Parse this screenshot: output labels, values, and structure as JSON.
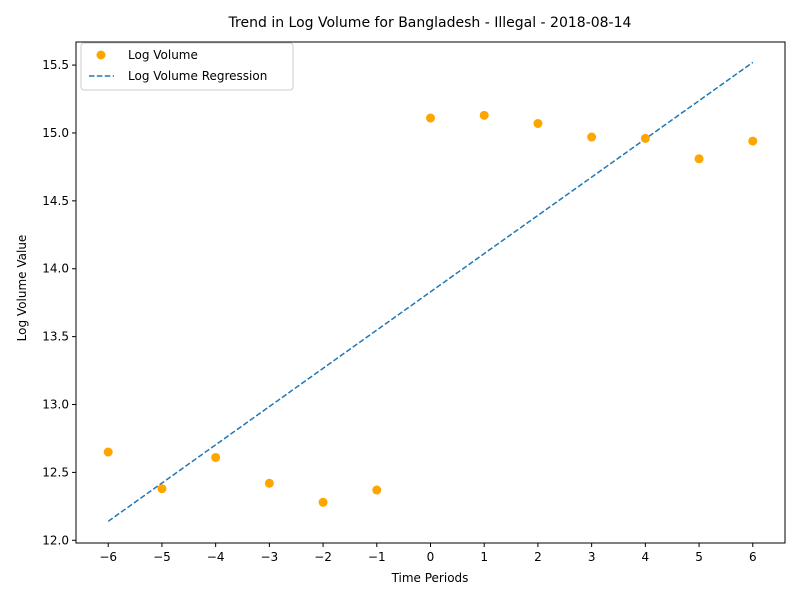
{
  "chart_data": {
    "type": "scatter",
    "title": "Trend in Log Volume for Bangladesh - Illegal - 2018-08-14",
    "xlabel": "Time Periods",
    "ylabel": "Log Volume Value",
    "xlim": [
      -6.6,
      6.6
    ],
    "ylim": [
      11.98,
      15.67
    ],
    "x_ticks": [
      -6,
      -5,
      -4,
      -3,
      -2,
      -1,
      0,
      1,
      2,
      3,
      4,
      5,
      6
    ],
    "x_tick_labels": [
      "−6",
      "−5",
      "−4",
      "−3",
      "−2",
      "−1",
      "0",
      "1",
      "2",
      "3",
      "4",
      "5",
      "6"
    ],
    "y_ticks": [
      12.0,
      12.5,
      13.0,
      13.5,
      14.0,
      14.5,
      15.0,
      15.5
    ],
    "y_tick_labels": [
      "12.0",
      "12.5",
      "13.0",
      "13.5",
      "14.0",
      "14.5",
      "15.0",
      "15.5"
    ],
    "grid": false,
    "legend_position": "top-left",
    "series": [
      {
        "name": "Log Volume",
        "kind": "scatter",
        "color": "#ffa500",
        "x": [
          -6,
          -5,
          -4,
          -3,
          -2,
          -1,
          0,
          1,
          2,
          3,
          4,
          5,
          6
        ],
        "y": [
          12.65,
          12.38,
          12.61,
          12.42,
          12.28,
          12.37,
          15.11,
          15.13,
          15.07,
          14.97,
          14.96,
          14.81,
          14.94
        ]
      },
      {
        "name": "Log Volume Regression",
        "kind": "line",
        "style": "dashed",
        "color": "#1f77b4",
        "x": [
          -6,
          6
        ],
        "y": [
          12.14,
          15.52
        ]
      }
    ]
  }
}
